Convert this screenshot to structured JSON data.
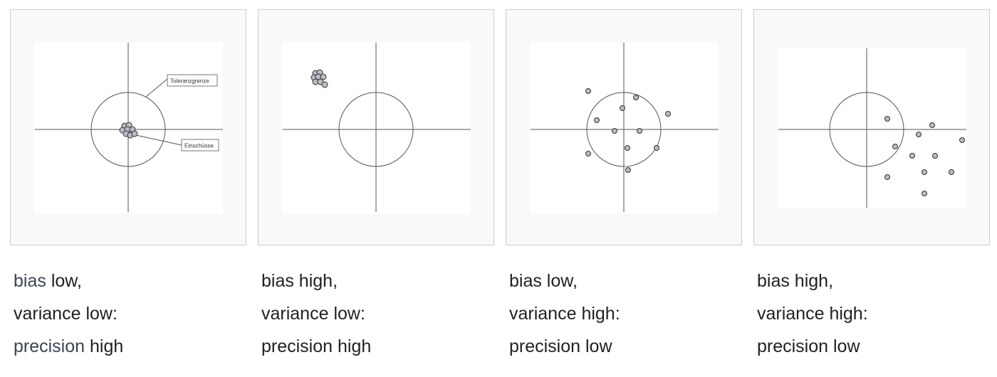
{
  "colors": {
    "panel_background": "#f8f9fa",
    "panel_border": "#c8ccd1",
    "plot_background": "#ffffff",
    "axis_line": "#555555",
    "circle_line": "#555555",
    "shot_fill": "#b9bcc4",
    "shot_stroke": "#333333",
    "caption_text": "#202122",
    "link_text": "#3c4353"
  },
  "panels": [
    {
      "annotations": {
        "tolerance_label": "Toleranzgrenze",
        "shots_label": "Einschüsse"
      },
      "caption": {
        "bias_link": "bias",
        "bias_rest": " low,",
        "variance": "variance low:",
        "precision_link": "precision",
        "precision_rest": " high"
      }
    },
    {
      "caption": {
        "bias": "bias high,",
        "variance": "variance low:",
        "precision": "precision high"
      }
    },
    {
      "caption": {
        "bias": "bias low,",
        "variance": "variance high:",
        "precision": "precision low"
      }
    },
    {
      "caption": {
        "bias": "bias high,",
        "variance": "variance high:",
        "precision": "precision low"
      }
    }
  ]
}
